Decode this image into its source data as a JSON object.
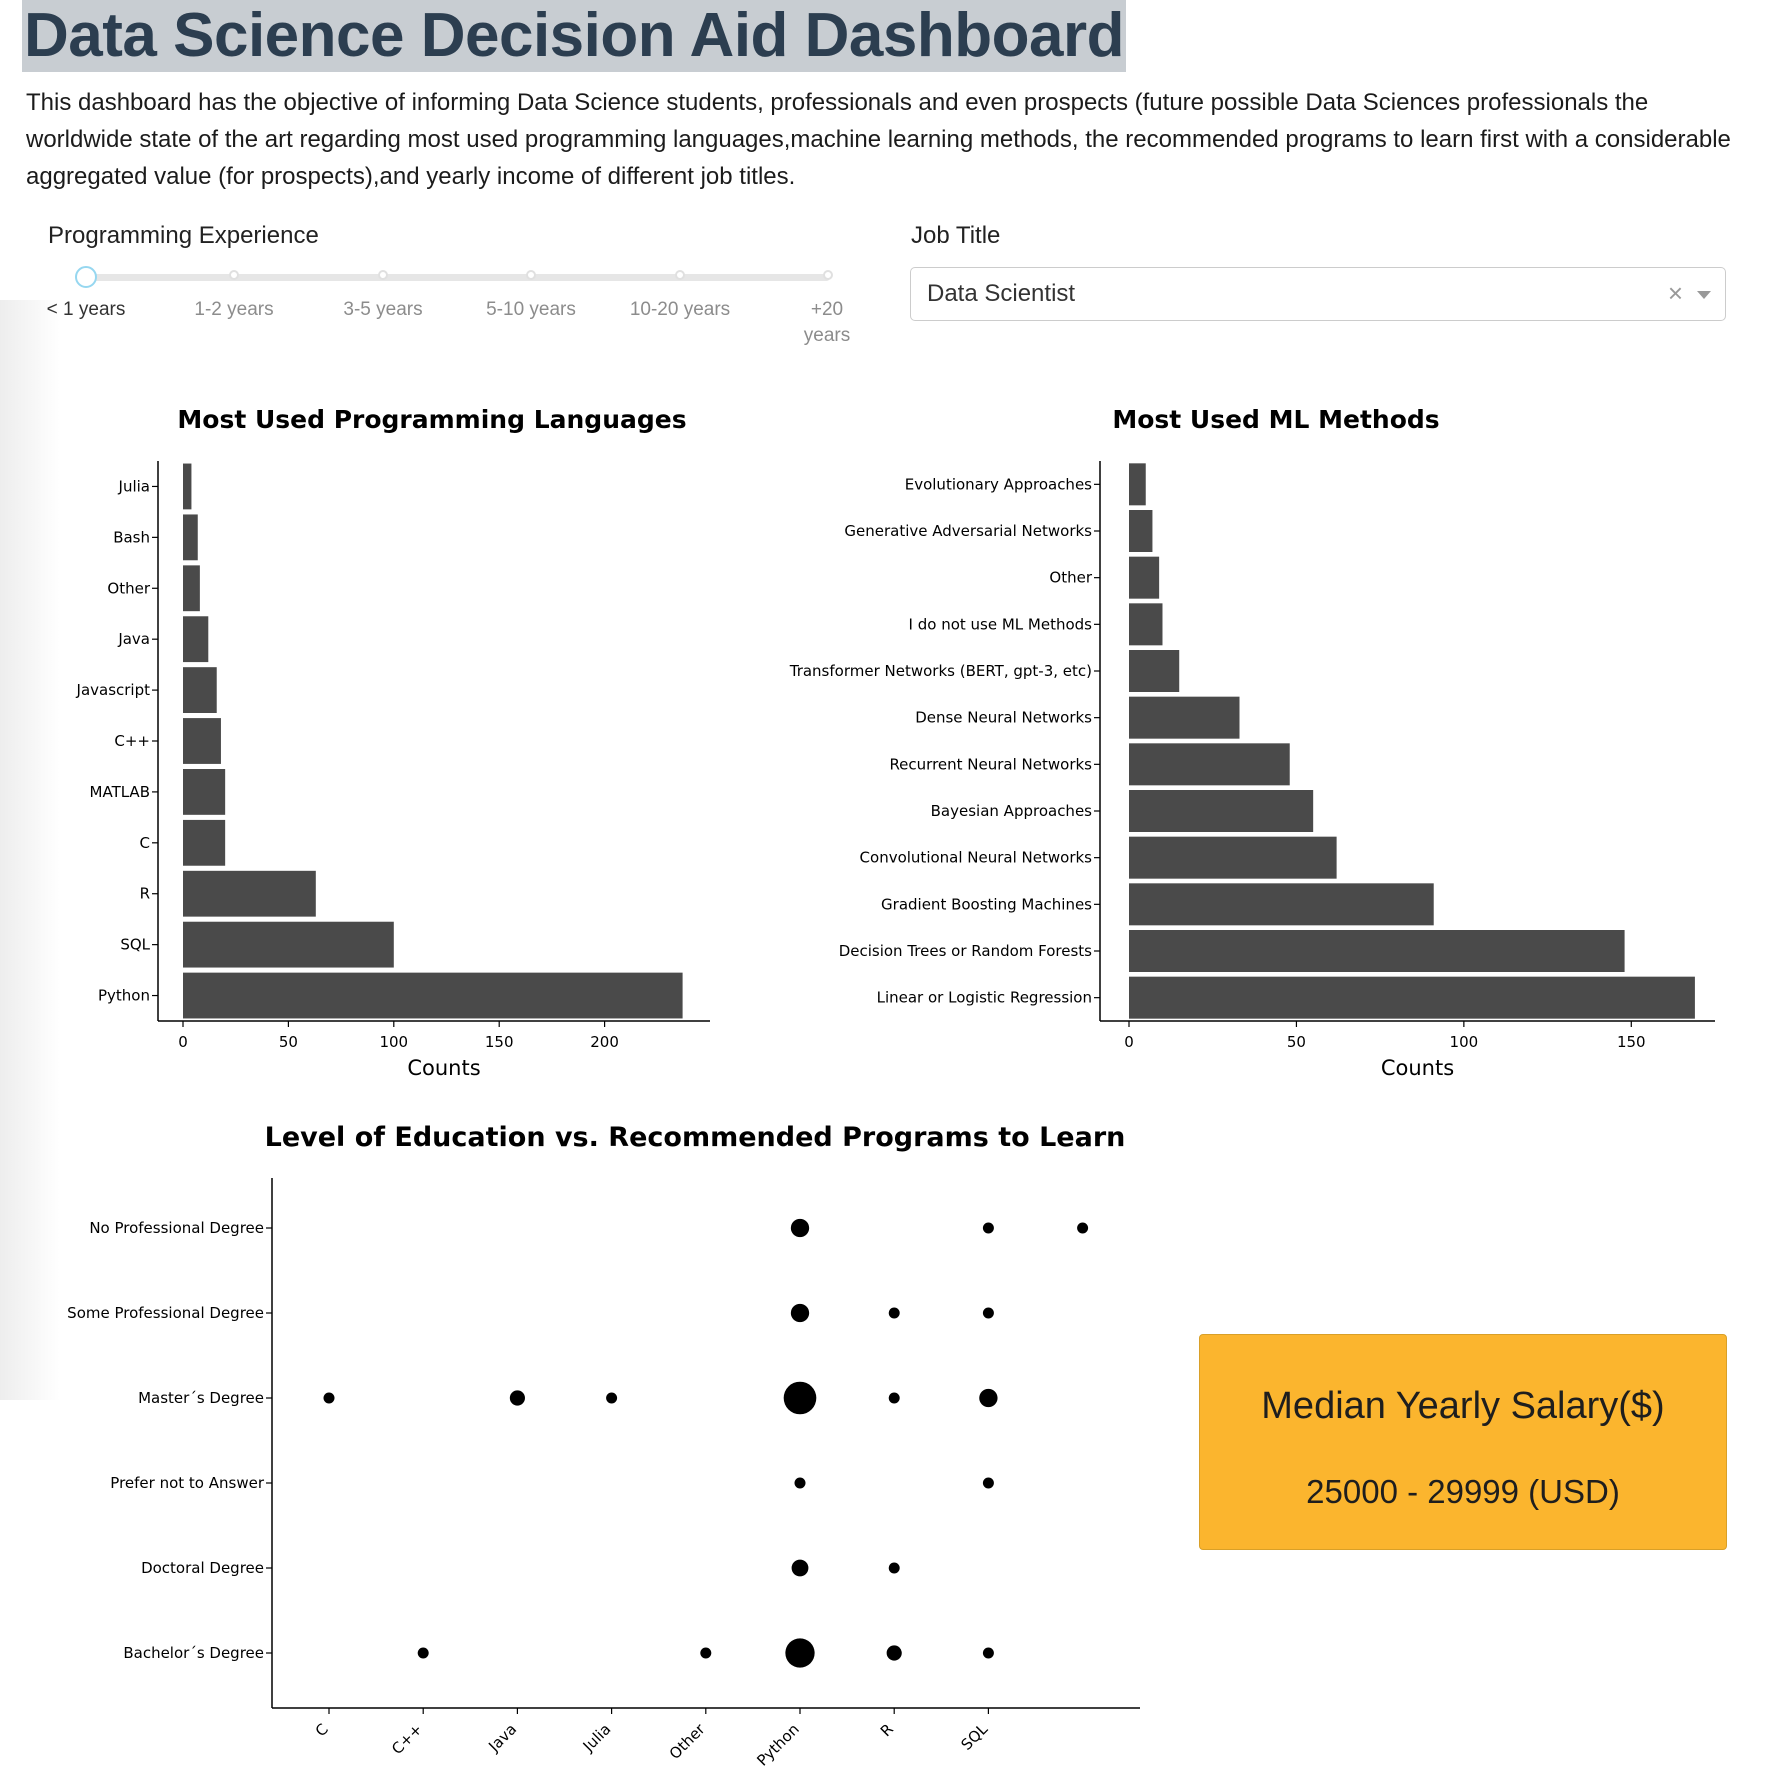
{
  "header": {
    "title": "Data Science Decision Aid Dashboard",
    "description": "This dashboard has the objective of informing Data Science students, professionals and even prospects (future possible Data Sciences professionals the worldwide state of the art regarding most used programming languages,machine learning methods, the recommended programs to learn first with a considerable aggregated value (for prospects),and yearly income of different job titles."
  },
  "experience_slider": {
    "label": "Programming Experience",
    "marks": [
      "< 1 years",
      "1-2 years",
      "3-5 years",
      "5-10 years",
      "10-20 years",
      "+20 years"
    ],
    "selected_index": 0
  },
  "job_title": {
    "label": "Job Title",
    "selected": "Data Scientist",
    "clear_icon": "close-icon",
    "arrow_icon": "chevron-down-icon"
  },
  "salary": {
    "title": "Median Yearly Salary($)",
    "value": "25000 - 29999 (USD)",
    "color": "#fbb52e"
  },
  "chart_data": [
    {
      "type": "bar",
      "orientation": "horizontal",
      "title": "Most Used Programming Languages",
      "xlabel": "Counts",
      "ylabel": "",
      "categories": [
        "Python",
        "SQL",
        "R",
        "C",
        "MATLAB",
        "C++",
        "Javascript",
        "Java",
        "Other",
        "Bash",
        "Julia"
      ],
      "values": [
        237,
        100,
        63,
        20,
        20,
        18,
        16,
        12,
        8,
        7,
        4
      ],
      "xlim": [
        0,
        250
      ],
      "xticks": [
        0,
        50,
        100,
        150,
        200
      ],
      "bar_color": "#4a4a4a",
      "grid": false
    },
    {
      "type": "bar",
      "orientation": "horizontal",
      "title": "Most Used ML Methods",
      "xlabel": "Counts",
      "ylabel": "",
      "categories": [
        "Linear or Logistic Regression",
        "Decision Trees or Random Forests",
        "Gradient Boosting Machines",
        "Convolutional Neural Networks",
        "Bayesian Approaches",
        "Recurrent Neural Networks",
        "Dense Neural Networks",
        "Transformer Networks (BERT, gpt-3, etc)",
        "I do not use ML Methods",
        "Other",
        "Generative Adversarial Networks",
        "Evolutionary Approaches"
      ],
      "values": [
        169,
        148,
        91,
        62,
        55,
        48,
        33,
        15,
        10,
        9,
        7,
        5
      ],
      "xlim": [
        0,
        175
      ],
      "xticks": [
        0,
        50,
        100,
        150
      ],
      "bar_color": "#4a4a4a",
      "grid": false
    },
    {
      "type": "scatter",
      "title": "Level of Education vs. Recommended Programs to Learn",
      "xlabel": "",
      "ylabel": "",
      "x_categories": [
        "C",
        "C++",
        "Java",
        "Julia",
        "Other",
        "Python",
        "R",
        "SQL",
        ""
      ],
      "y_categories": [
        "Bachelor´s Degree",
        "Doctoral Degree",
        "Prefer not to Answer",
        "Master´s Degree",
        "Some Professional Degree",
        "No Professional Degree"
      ],
      "points": [
        {
          "x": "Python",
          "y": "No Professional Degree",
          "size": 3
        },
        {
          "x": "SQL",
          "y": "No Professional Degree",
          "size": 1
        },
        {
          "x": "",
          "y": "No Professional Degree",
          "size": 1
        },
        {
          "x": "Python",
          "y": "Some Professional Degree",
          "size": 3
        },
        {
          "x": "R",
          "y": "Some Professional Degree",
          "size": 1
        },
        {
          "x": "SQL",
          "y": "Some Professional Degree",
          "size": 1
        },
        {
          "x": "C",
          "y": "Master´s Degree",
          "size": 1
        },
        {
          "x": "Java",
          "y": "Master´s Degree",
          "size": 2
        },
        {
          "x": "Julia",
          "y": "Master´s Degree",
          "size": 1
        },
        {
          "x": "Python",
          "y": "Master´s Degree",
          "size": 10
        },
        {
          "x": "R",
          "y": "Master´s Degree",
          "size": 1
        },
        {
          "x": "SQL",
          "y": "Master´s Degree",
          "size": 3
        },
        {
          "x": "Python",
          "y": "Prefer not to Answer",
          "size": 1
        },
        {
          "x": "SQL",
          "y": "Prefer not to Answer",
          "size": 1
        },
        {
          "x": "Python",
          "y": "Doctoral Degree",
          "size": 2.5
        },
        {
          "x": "R",
          "y": "Doctoral Degree",
          "size": 1
        },
        {
          "x": "C++",
          "y": "Bachelor´s Degree",
          "size": 1
        },
        {
          "x": "Other",
          "y": "Bachelor´s Degree",
          "size": 1
        },
        {
          "x": "Python",
          "y": "Bachelor´s Degree",
          "size": 8
        },
        {
          "x": "R",
          "y": "Bachelor´s Degree",
          "size": 2
        },
        {
          "x": "SQL",
          "y": "Bachelor´s Degree",
          "size": 1
        }
      ],
      "marker_color": "#000000",
      "grid": false
    }
  ]
}
